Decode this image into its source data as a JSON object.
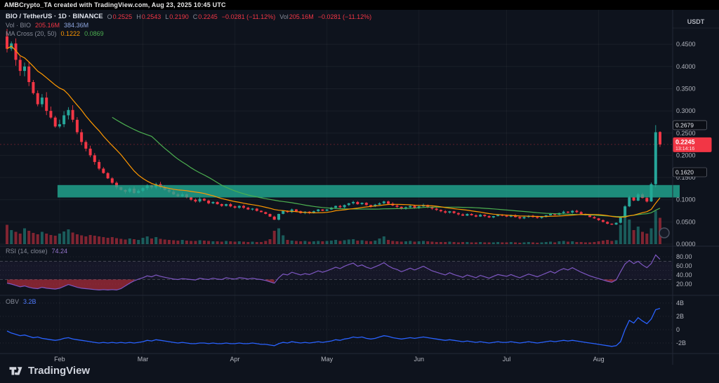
{
  "topbar": {
    "text": "AMBCrypto_TA created with TradingView.com, Aug 23, 2025 10:45 UTC"
  },
  "legend": {
    "title": "BIO / TetherUS · 1D · BINANCE",
    "o_label": "O",
    "o": "0.2525",
    "h_label": "H",
    "h": "0.2543",
    "l_label": "L",
    "l": "0.2190",
    "c_label": "C",
    "c": "0.2245",
    "change": "−0.0281 (−11.12%)",
    "vol_label": "Vol",
    "vol": "205.16M",
    "vol_change": "−0.0281 (−11.12%)",
    "row2_label": "Vol · BIO",
    "row2_v1": "205.16M",
    "row2_v2": "384.36M",
    "row3_label": "MA Cross (20, 50)",
    "row3_v1": "0.1222",
    "row3_v2": "0.0869"
  },
  "rsi_legend": {
    "label": "RSI (14, close)",
    "value": "74.24"
  },
  "obv_legend": {
    "label": "OBV",
    "value": "3.2B"
  },
  "price_axis": {
    "currency": "USDT",
    "ticks": [
      "0.4500",
      "0.4000",
      "0.3500",
      "0.3000",
      "0.2500",
      "0.2000",
      "0.1500",
      "0.1000",
      "0.0500",
      "0.0000"
    ],
    "tags": [
      {
        "text": "0.2679",
        "price": 0.2679,
        "style": "plain"
      },
      {
        "text": "0.2245",
        "price": 0.2245,
        "style": "last",
        "sub": "13:14:16"
      },
      {
        "text": "0.1620",
        "price": 0.162,
        "style": "plain"
      }
    ]
  },
  "rsi_axis": {
    "ticks": [
      {
        "text": "80.00",
        "v": 80
      },
      {
        "text": "60.00",
        "v": 60
      },
      {
        "text": "40.00",
        "v": 40
      },
      {
        "text": "20.00",
        "v": 20
      }
    ]
  },
  "obv_axis": {
    "ticks": [
      {
        "text": "4B",
        "v": 4
      },
      {
        "text": "2B",
        "v": 2
      },
      {
        "text": "0",
        "v": 0
      },
      {
        "text": "-2B",
        "v": -2
      }
    ]
  },
  "time_axis": {
    "labels": [
      {
        "text": "Feb",
        "i": 12
      },
      {
        "text": "Mar",
        "i": 31
      },
      {
        "text": "Apr",
        "i": 52
      },
      {
        "text": "May",
        "i": 73
      },
      {
        "text": "Jun",
        "i": 94
      },
      {
        "text": "Jul",
        "i": 114
      },
      {
        "text": "Aug",
        "i": 135
      }
    ]
  },
  "footer": {
    "brand": "TradingView"
  },
  "colors": {
    "up": "#26a69a",
    "down": "#f23645",
    "band": "#22ab94",
    "ma_fast": "#ff9800",
    "ma_slow": "#4caf50",
    "rsi": "#7e57c2",
    "obv": "#2962ff",
    "axis_text": "#b2b5be",
    "last_tag_bg": "#f23645"
  },
  "chart_data": {
    "type": "candlestick",
    "title": "BIO / TetherUS · 1D · BINANCE",
    "ylim": [
      0,
      0.5
    ],
    "last_bar": {
      "open": 0.2525,
      "high": 0.2543,
      "low": 0.219,
      "close": 0.2245,
      "change": -0.0281,
      "change_pct": -11.12,
      "volume": "205.16M"
    },
    "first_open": 0.468,
    "closes": [
      0.44,
      0.452,
      0.415,
      0.39,
      0.4,
      0.365,
      0.34,
      0.315,
      0.33,
      0.3,
      0.285,
      0.265,
      0.27,
      0.29,
      0.302,
      0.28,
      0.252,
      0.23,
      0.215,
      0.2,
      0.185,
      0.17,
      0.16,
      0.148,
      0.138,
      0.128,
      0.122,
      0.118,
      0.125,
      0.115,
      0.12,
      0.126,
      0.132,
      0.128,
      0.135,
      0.128,
      0.122,
      0.118,
      0.112,
      0.108,
      0.112,
      0.105,
      0.1,
      0.096,
      0.102,
      0.098,
      0.092,
      0.095,
      0.09,
      0.086,
      0.09,
      0.085,
      0.082,
      0.086,
      0.082,
      0.078,
      0.08,
      0.075,
      0.072,
      0.068,
      0.062,
      0.055,
      0.068,
      0.075,
      0.072,
      0.078,
      0.074,
      0.07,
      0.073,
      0.07,
      0.074,
      0.078,
      0.075,
      0.078,
      0.082,
      0.086,
      0.083,
      0.088,
      0.092,
      0.095,
      0.09,
      0.093,
      0.088,
      0.085,
      0.089,
      0.092,
      0.096,
      0.091,
      0.087,
      0.084,
      0.08,
      0.083,
      0.086,
      0.082,
      0.085,
      0.088,
      0.084,
      0.08,
      0.077,
      0.074,
      0.071,
      0.074,
      0.07,
      0.067,
      0.064,
      0.068,
      0.065,
      0.062,
      0.066,
      0.063,
      0.06,
      0.063,
      0.066,
      0.064,
      0.062,
      0.065,
      0.061,
      0.058,
      0.061,
      0.064,
      0.061,
      0.059,
      0.062,
      0.065,
      0.068,
      0.066,
      0.07,
      0.073,
      0.071,
      0.075,
      0.072,
      0.068,
      0.065,
      0.061,
      0.058,
      0.054,
      0.05,
      0.046,
      0.044,
      0.048,
      0.06,
      0.085,
      0.105,
      0.098,
      0.112,
      0.104,
      0.096,
      0.135,
      0.252,
      0.2245
    ],
    "volumes_rel": [
      55,
      40,
      35,
      30,
      45,
      38,
      32,
      28,
      35,
      30,
      26,
      24,
      30,
      36,
      42,
      33,
      28,
      25,
      22,
      26,
      24,
      22,
      20,
      18,
      20,
      17,
      15,
      13,
      16,
      14,
      12,
      18,
      22,
      16,
      20,
      15,
      13,
      12,
      11,
      10,
      12,
      10,
      9,
      9,
      11,
      10,
      9,
      8,
      8,
      7,
      9,
      8,
      7,
      8,
      7,
      6,
      7,
      6,
      6,
      9,
      14,
      38,
      45,
      25,
      12,
      10,
      9,
      8,
      9,
      7,
      8,
      9,
      8,
      9,
      10,
      12,
      9,
      11,
      13,
      14,
      10,
      11,
      9,
      8,
      10,
      16,
      22,
      12,
      9,
      8,
      7,
      8,
      9,
      7,
      8,
      9,
      8,
      7,
      6,
      6,
      6,
      7,
      6,
      5,
      6,
      6,
      5,
      5,
      6,
      5,
      5,
      5,
      6,
      5,
      5,
      6,
      5,
      4,
      5,
      6,
      5,
      4,
      5,
      6,
      7,
      5,
      8,
      9,
      7,
      8,
      6,
      6,
      5,
      5,
      6,
      8,
      10,
      12,
      9,
      11,
      55,
      85,
      70,
      40,
      50,
      35,
      30,
      45,
      95,
      75
    ],
    "overrides": {
      "0": {
        "open": 0.468
      },
      "148": {
        "high": 0.2679,
        "low": 0.128
      },
      "149": {
        "open": 0.2525,
        "high": 0.2543,
        "low": 0.219
      }
    },
    "band": {
      "low": 0.105,
      "high": 0.133,
      "start_index": 12,
      "color": "#22ab94"
    },
    "ma": {
      "label": "MA Cross (20, 50)",
      "fast_period": 20,
      "slow_period": 50,
      "fast_value": 0.1222,
      "slow_value": 0.0869,
      "fast_window_bars": 14,
      "slow_window_bars": 34,
      "slow_start_bar": 24
    },
    "subpanes": [
      {
        "type": "line",
        "name": "RSI (14, close)",
        "last": 74.24,
        "range": [
          0,
          100
        ],
        "levels": {
          "upper": 70,
          "lower": 30
        },
        "values": [
          22,
          20,
          17,
          14,
          16,
          13,
          11,
          10,
          13,
          11,
          10,
          9,
          11,
          15,
          19,
          16,
          13,
          11,
          10,
          9,
          8,
          7,
          8,
          7,
          8,
          7,
          10,
          16,
          22,
          27,
          31,
          34,
          38,
          36,
          40,
          37,
          35,
          33,
          31,
          30,
          32,
          31,
          30,
          29,
          33,
          31,
          30,
          33,
          31,
          30,
          34,
          32,
          31,
          34,
          33,
          31,
          33,
          31,
          30,
          28,
          25,
          22,
          34,
          42,
          40,
          46,
          43,
          40,
          43,
          41,
          45,
          49,
          46,
          49,
          53,
          57,
          54,
          59,
          63,
          66,
          59,
          62,
          57,
          54,
          58,
          62,
          67,
          60,
          55,
          52,
          47,
          51,
          55,
          51,
          55,
          59,
          54,
          49,
          46,
          43,
          40,
          45,
          41,
          38,
          35,
          40,
          37,
          34,
          39,
          36,
          33,
          37,
          41,
          39,
          37,
          41,
          37,
          34,
          38,
          42,
          39,
          36,
          40,
          44,
          48,
          44,
          50,
          54,
          51,
          56,
          51,
          46,
          42,
          38,
          35,
          32,
          29,
          26,
          24,
          29,
          47,
          64,
          72,
          65,
          70,
          62,
          56,
          65,
          84,
          74.24
        ]
      },
      {
        "type": "line",
        "name": "OBV",
        "last_label": "3.2B",
        "values_billions": [
          -0.2,
          -0.5,
          -0.7,
          -0.9,
          -0.8,
          -1.0,
          -1.2,
          -1.1,
          -1.3,
          -1.4,
          -1.5,
          -1.6,
          -1.5,
          -1.3,
          -1.2,
          -1.4,
          -1.5,
          -1.6,
          -1.7,
          -1.8,
          -1.9,
          -2.0,
          -1.9,
          -2.0,
          -1.9,
          -2.0,
          -1.9,
          -2.0,
          -1.9,
          -2.0,
          -1.9,
          -1.8,
          -1.6,
          -1.7,
          -1.5,
          -1.6,
          -1.7,
          -1.8,
          -1.9,
          -2.0,
          -1.9,
          -2.0,
          -2.1,
          -2.1,
          -2.0,
          -2.0,
          -2.1,
          -2.0,
          -2.1,
          -2.1,
          -2.0,
          -2.1,
          -2.1,
          -2.0,
          -2.1,
          -2.1,
          -2.0,
          -2.1,
          -2.2,
          -2.2,
          -2.3,
          -2.4,
          -2.1,
          -1.9,
          -2.0,
          -1.8,
          -1.9,
          -2.0,
          -1.9,
          -2.0,
          -1.9,
          -1.8,
          -1.9,
          -1.8,
          -1.7,
          -1.5,
          -1.6,
          -1.4,
          -1.3,
          -1.1,
          -1.2,
          -1.1,
          -1.3,
          -1.4,
          -1.3,
          -1.1,
          -0.9,
          -1.0,
          -1.2,
          -1.3,
          -1.4,
          -1.3,
          -1.2,
          -1.3,
          -1.2,
          -1.1,
          -1.2,
          -1.3,
          -1.4,
          -1.5,
          -1.6,
          -1.5,
          -1.6,
          -1.7,
          -1.8,
          -1.7,
          -1.8,
          -1.9,
          -1.8,
          -1.9,
          -2.0,
          -1.9,
          -1.8,
          -1.9,
          -1.9,
          -1.8,
          -1.9,
          -2.0,
          -1.9,
          -1.8,
          -1.9,
          -2.0,
          -1.9,
          -1.8,
          -1.7,
          -1.8,
          -1.7,
          -1.6,
          -1.7,
          -1.6,
          -1.7,
          -1.8,
          -1.9,
          -2.0,
          -2.1,
          -2.2,
          -2.3,
          -2.4,
          -2.5,
          -2.4,
          -1.8,
          0.0,
          1.4,
          1.0,
          1.8,
          1.3,
          0.9,
          1.6,
          3.0,
          3.2
        ]
      }
    ]
  }
}
